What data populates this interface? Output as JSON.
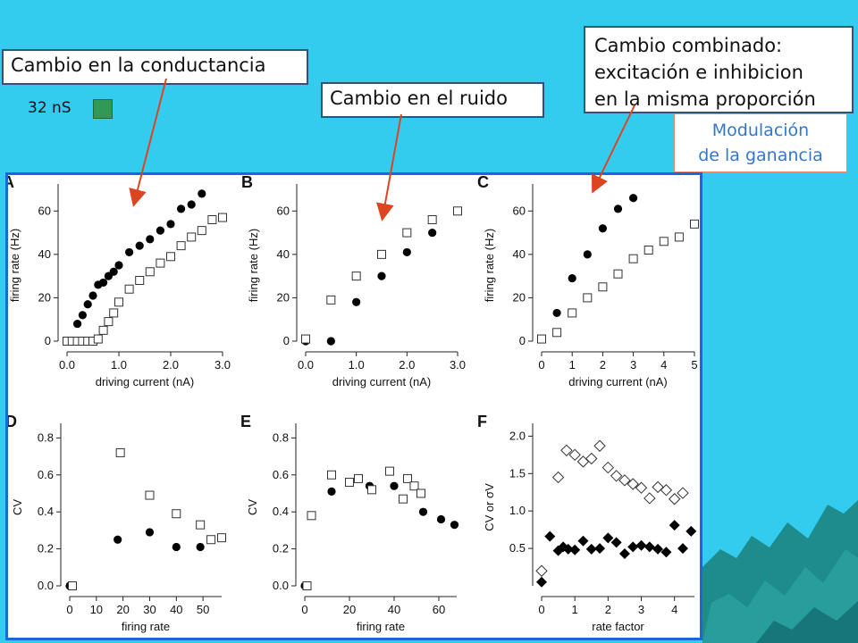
{
  "callouts": {
    "conductance": "Cambio en la conductancia",
    "noise": "Cambio en el ruido",
    "combined_line1": "Cambio combinado:",
    "combined_line2": "excitación e inhibicion",
    "combined_line3": "en la misma proporción"
  },
  "gain": {
    "line1": "Modulación",
    "line2": "de la ganancia"
  },
  "legend": {
    "label": "32 nS",
    "swatch_color": "#2f9955"
  },
  "colors": {
    "background": "#33ccee",
    "panel_border": "#1a66dd",
    "arrow": "#dd4422",
    "gain_text": "#3377cc"
  },
  "chart_data": [
    {
      "panel": "A",
      "type": "scatter",
      "xlabel": "driving current (nA)",
      "ylabel": "firing rate (Hz)",
      "xlim": [
        0,
        3.0
      ],
      "ylim": [
        0,
        70
      ],
      "xticks": [
        0,
        1,
        2,
        3
      ],
      "xticklabels": [
        "0.0",
        "1.0",
        "2.0",
        "3.0"
      ],
      "yticks": [
        0,
        20,
        40,
        60
      ],
      "yticklabels": [
        "0",
        "20",
        "40",
        "60"
      ],
      "series": [
        {
          "marker": "filled-circle",
          "x": [
            0,
            0.05,
            0.1,
            0.15,
            0.2,
            0.3,
            0.4,
            0.5,
            0.6,
            0.7,
            0.8,
            0.9,
            1.0,
            1.2,
            1.4,
            1.6,
            1.8,
            2.0,
            2.2,
            2.4,
            2.6
          ],
          "y": [
            0,
            0,
            0,
            0,
            8,
            12,
            17,
            21,
            26,
            27,
            30,
            32,
            35,
            41,
            44,
            47,
            51,
            54,
            61,
            63,
            68
          ]
        },
        {
          "marker": "open-square",
          "x": [
            0,
            0.1,
            0.2,
            0.3,
            0.4,
            0.5,
            0.6,
            0.7,
            0.8,
            0.9,
            1.0,
            1.2,
            1.4,
            1.6,
            1.8,
            2.0,
            2.2,
            2.4,
            2.6,
            2.8,
            3.0
          ],
          "y": [
            0,
            0,
            0,
            0,
            0,
            0,
            1,
            5,
            9,
            13,
            18,
            24,
            28,
            32,
            36,
            39,
            44,
            48,
            51,
            56,
            57
          ]
        }
      ]
    },
    {
      "panel": "B",
      "type": "scatter",
      "xlabel": "driving current (nA)",
      "ylabel": "firing rate (Hz)",
      "xlim": [
        0,
        3.0
      ],
      "ylim": [
        0,
        70
      ],
      "xticks": [
        0,
        1,
        2,
        3
      ],
      "xticklabels": [
        "0.0",
        "1.0",
        "2.0",
        "3.0"
      ],
      "yticks": [
        0,
        20,
        40,
        60
      ],
      "yticklabels": [
        "0",
        "20",
        "40",
        "60"
      ],
      "series": [
        {
          "marker": "filled-circle",
          "x": [
            0,
            0.5,
            1.0,
            1.5,
            2.0,
            2.5
          ],
          "y": [
            0,
            0,
            18,
            30,
            41,
            50
          ]
        },
        {
          "marker": "open-square",
          "x": [
            0,
            0.5,
            1.0,
            1.5,
            2.0,
            2.5,
            3.0
          ],
          "y": [
            1,
            19,
            30,
            40,
            50,
            56,
            60
          ]
        }
      ]
    },
    {
      "panel": "C",
      "type": "scatter",
      "xlabel": "driving current (nA)",
      "ylabel": "firing rate (Hz)",
      "xlim": [
        0,
        5
      ],
      "ylim": [
        0,
        70
      ],
      "xticks": [
        0,
        1,
        2,
        3,
        4,
        5
      ],
      "xticklabels": [
        "0",
        "1",
        "2",
        "3",
        "4",
        "5"
      ],
      "yticks": [
        0,
        20,
        40,
        60
      ],
      "yticklabels": [
        "0",
        "20",
        "40",
        "60"
      ],
      "series": [
        {
          "marker": "filled-circle",
          "x": [
            0,
            0.5,
            1.0,
            1.5,
            2.0,
            2.5,
            3.0
          ],
          "y": [
            1,
            13,
            29,
            40,
            52,
            61,
            66
          ]
        },
        {
          "marker": "open-square",
          "x": [
            0,
            0.5,
            1.0,
            1.5,
            2.0,
            2.5,
            3.0,
            3.5,
            4.0,
            4.5,
            5.0
          ],
          "y": [
            1,
            4,
            13,
            20,
            25,
            31,
            38,
            42,
            46,
            48,
            54
          ]
        }
      ]
    },
    {
      "panel": "D",
      "type": "scatter",
      "xlabel": "firing rate",
      "ylabel": "CV",
      "xlim": [
        0,
        57
      ],
      "ylim": [
        0,
        0.85
      ],
      "xticks": [
        0,
        10,
        20,
        30,
        40,
        50
      ],
      "xticklabels": [
        "0",
        "10",
        "20",
        "30",
        "40",
        "50"
      ],
      "yticks": [
        0,
        0.2,
        0.4,
        0.6,
        0.8
      ],
      "yticklabels": [
        "0.0",
        "0.2",
        "0.4",
        "0.6",
        "0.8"
      ],
      "series": [
        {
          "marker": "filled-circle",
          "x": [
            0,
            18,
            30,
            40,
            49
          ],
          "y": [
            0,
            0.25,
            0.29,
            0.21,
            0.21
          ]
        },
        {
          "marker": "open-square",
          "x": [
            1,
            19,
            30,
            40,
            49,
            53,
            57
          ],
          "y": [
            0,
            0.72,
            0.49,
            0.39,
            0.33,
            0.25,
            0.26
          ]
        }
      ]
    },
    {
      "panel": "E",
      "type": "scatter",
      "xlabel": "firing rate",
      "ylabel": "CV",
      "xlim": [
        0,
        68
      ],
      "ylim": [
        0,
        0.85
      ],
      "xticks": [
        0,
        20,
        40,
        60
      ],
      "xticklabels": [
        "0",
        "20",
        "40",
        "60"
      ],
      "yticks": [
        0,
        0.2,
        0.4,
        0.6,
        0.8
      ],
      "yticklabels": [
        "0.0",
        "0.2",
        "0.4",
        "0.6",
        "0.8"
      ],
      "series": [
        {
          "marker": "filled-circle",
          "x": [
            0,
            12,
            29,
            40,
            53,
            61,
            67
          ],
          "y": [
            0,
            0.51,
            0.54,
            0.54,
            0.4,
            0.36,
            0.33
          ]
        },
        {
          "marker": "open-square",
          "x": [
            1,
            3,
            12,
            20,
            24,
            30,
            38,
            44,
            46,
            49,
            52
          ],
          "y": [
            0,
            0.38,
            0.6,
            0.56,
            0.58,
            0.52,
            0.62,
            0.47,
            0.58,
            0.54,
            0.5
          ]
        }
      ]
    },
    {
      "panel": "F",
      "type": "scatter",
      "xlabel": "rate factor",
      "ylabel": "CV or σV",
      "xlim": [
        0,
        4.6
      ],
      "ylim": [
        0,
        2.1
      ],
      "xticks": [
        0,
        1,
        2,
        3,
        4
      ],
      "xticklabels": [
        "0",
        "1",
        "2",
        "3",
        "4"
      ],
      "yticks": [
        0.5,
        1.0,
        1.5,
        2.0
      ],
      "yticklabels": [
        "0.5",
        "1.0",
        "1.5",
        "2.0"
      ],
      "series": [
        {
          "marker": "filled-diamond",
          "x": [
            0,
            0.25,
            0.5,
            0.65,
            0.8,
            1.0,
            1.25,
            1.5,
            1.75,
            2.0,
            2.25,
            2.5,
            2.75,
            3.0,
            3.25,
            3.5,
            3.75,
            4.0,
            4.25,
            4.5
          ],
          "y": [
            0.05,
            0.66,
            0.47,
            0.52,
            0.49,
            0.48,
            0.6,
            0.49,
            0.5,
            0.64,
            0.58,
            0.43,
            0.52,
            0.54,
            0.52,
            0.49,
            0.45,
            0.81,
            0.5,
            0.73
          ]
        },
        {
          "marker": "open-diamond",
          "x": [
            0,
            0.5,
            0.75,
            1.0,
            1.25,
            1.5,
            1.75,
            2.0,
            2.25,
            2.5,
            2.75,
            3.0,
            3.25,
            3.5,
            3.75,
            4.0,
            4.25
          ],
          "y": [
            0.2,
            1.45,
            1.81,
            1.75,
            1.66,
            1.7,
            1.87,
            1.58,
            1.47,
            1.41,
            1.36,
            1.31,
            1.17,
            1.32,
            1.28,
            1.16,
            1.24
          ]
        }
      ]
    }
  ]
}
